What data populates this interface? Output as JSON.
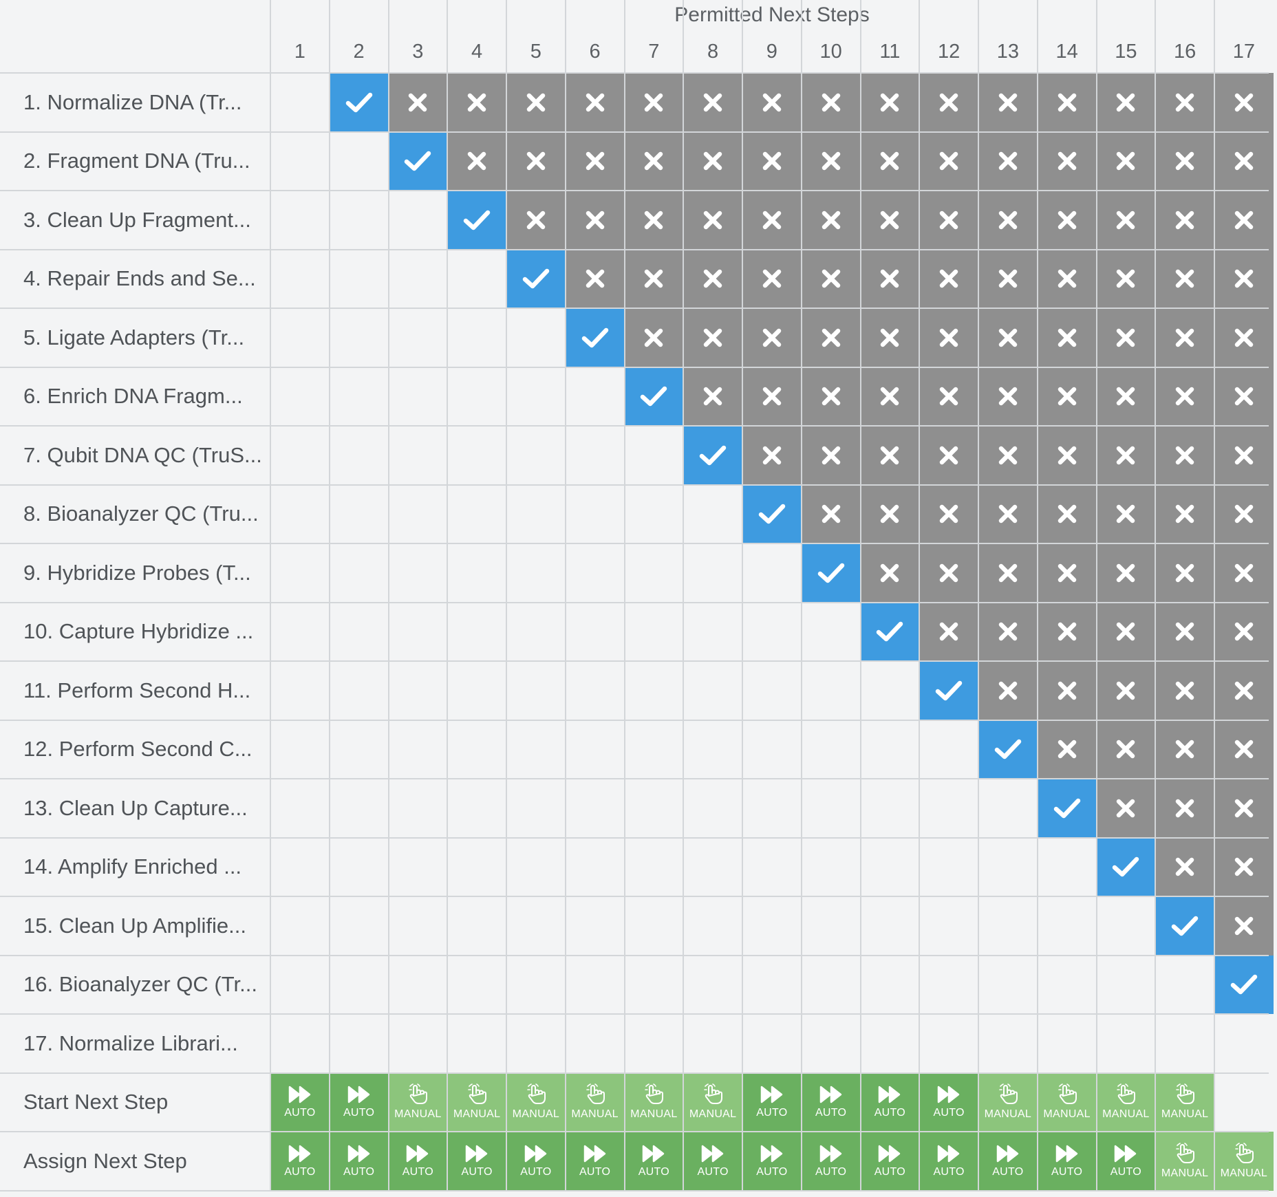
{
  "header": {
    "title": "Permitted Next Steps"
  },
  "columns": [
    "1",
    "2",
    "3",
    "4",
    "5",
    "6",
    "7",
    "8",
    "9",
    "10",
    "11",
    "12",
    "13",
    "14",
    "15",
    "16",
    "17"
  ],
  "steps": [
    {
      "label": "1. Normalize DNA (Tr...",
      "allowed": 2
    },
    {
      "label": "2. Fragment DNA (Tru...",
      "allowed": 3
    },
    {
      "label": "3. Clean Up Fragment...",
      "allowed": 4
    },
    {
      "label": "4. Repair Ends and Se...",
      "allowed": 5
    },
    {
      "label": "5. Ligate Adapters (Tr...",
      "allowed": 6
    },
    {
      "label": "6. Enrich DNA Fragm...",
      "allowed": 7
    },
    {
      "label": "7. Qubit DNA QC (TruS...",
      "allowed": 8
    },
    {
      "label": "8. Bioanalyzer QC (Tru...",
      "allowed": 9
    },
    {
      "label": "9. Hybridize Probes (T...",
      "allowed": 10
    },
    {
      "label": "10. Capture Hybridize ...",
      "allowed": 11
    },
    {
      "label": "11. Perform Second H...",
      "allowed": 12
    },
    {
      "label": "12. Perform Second C...",
      "allowed": 13
    },
    {
      "label": "13. Clean Up Capture...",
      "allowed": 14
    },
    {
      "label": "14. Amplify Enriched ...",
      "allowed": 15
    },
    {
      "label": "15. Clean Up Amplifie...",
      "allowed": 16
    },
    {
      "label": "16. Bioanalyzer QC (Tr...",
      "allowed": 17
    },
    {
      "label": "17. Normalize Librari...",
      "allowed": null
    }
  ],
  "start_next_step": {
    "label": "Start Next Step",
    "modes": [
      "AUTO",
      "AUTO",
      "MANUAL",
      "MANUAL",
      "MANUAL",
      "MANUAL",
      "MANUAL",
      "MANUAL",
      "AUTO",
      "AUTO",
      "AUTO",
      "AUTO",
      "MANUAL",
      "MANUAL",
      "MANUAL",
      "MANUAL",
      null
    ]
  },
  "assign_next_step": {
    "label": "Assign Next Step",
    "modes": [
      "AUTO",
      "AUTO",
      "AUTO",
      "AUTO",
      "AUTO",
      "AUTO",
      "AUTO",
      "AUTO",
      "AUTO",
      "AUTO",
      "AUTO",
      "AUTO",
      "AUTO",
      "AUTO",
      "AUTO",
      "MANUAL",
      "MANUAL"
    ]
  },
  "icons": {
    "allowed": "check-icon",
    "blocked": "x-icon",
    "auto": "fast-forward-icon",
    "manual": "hand-pointer-icon"
  },
  "colors": {
    "allowed": "#3e9be0",
    "blocked": "#8f8f8f",
    "auto": "#6ab060",
    "manual": "#8cc57c"
  }
}
